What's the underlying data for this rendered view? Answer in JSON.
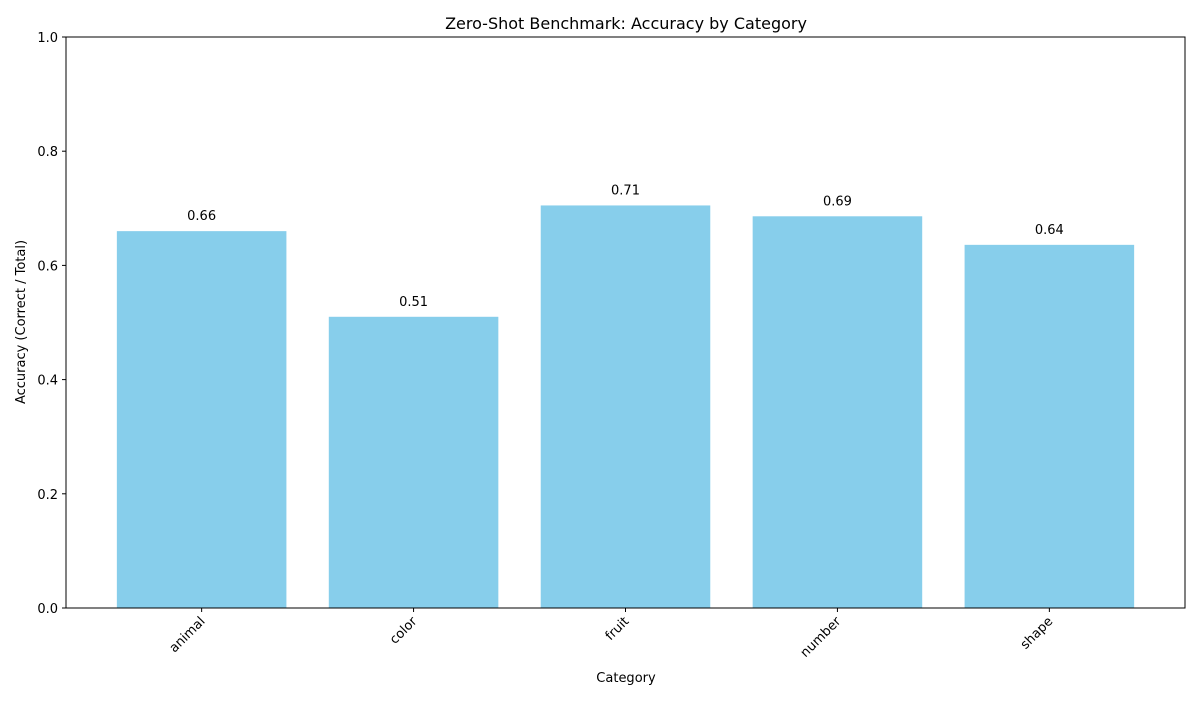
{
  "chart_data": {
    "type": "bar",
    "title": "Zero-Shot Benchmark: Accuracy by Category",
    "xlabel": "Category",
    "ylabel": "Accuracy (Correct / Total)",
    "categories": [
      "animal",
      "color",
      "fruit",
      "number",
      "shape"
    ],
    "values": [
      0.66,
      0.51,
      0.705,
      0.686,
      0.636
    ],
    "value_labels": [
      "0.66",
      "0.51",
      "0.71",
      "0.69",
      "0.64"
    ],
    "ylim": [
      0,
      1
    ],
    "yticks": [
      0.0,
      0.2,
      0.4,
      0.6,
      0.8,
      1.0
    ],
    "ytick_labels": [
      "0.0",
      "0.2",
      "0.4",
      "0.6",
      "0.8",
      "1.0"
    ],
    "grid": false,
    "bar_color": "#87ceeb"
  }
}
